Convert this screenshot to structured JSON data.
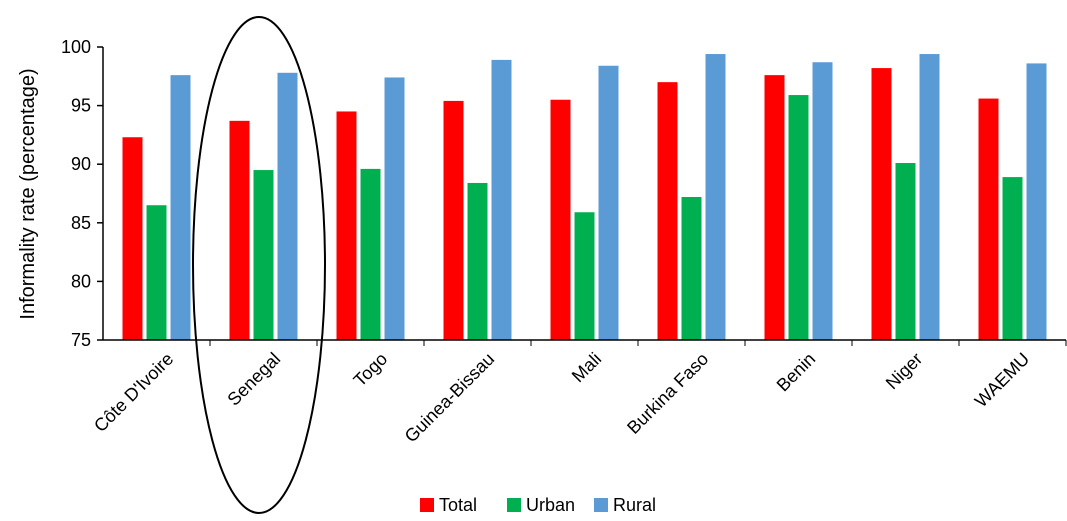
{
  "chart_data": {
    "type": "bar",
    "title": "",
    "xlabel": "",
    "ylabel": "Informality rate (percentage)",
    "ylim": [
      75,
      100
    ],
    "yticks": [
      75,
      80,
      85,
      90,
      95,
      100
    ],
    "grid": false,
    "legend_position": "bottom",
    "categories": [
      "Côte D'Ivoire",
      "Senegal",
      "Togo",
      "Guinea-Bissau",
      "Mali",
      "Burkina Faso",
      "Benin",
      "Niger",
      "WAEMU"
    ],
    "series": [
      {
        "name": "Total",
        "color": "#ff0000",
        "values": [
          92.3,
          93.7,
          94.5,
          95.4,
          95.5,
          97.0,
          97.6,
          98.2,
          95.6
        ]
      },
      {
        "name": "Urban",
        "color": "#00b050",
        "values": [
          86.5,
          89.5,
          89.6,
          88.4,
          85.9,
          87.2,
          95.9,
          90.1,
          88.9
        ]
      },
      {
        "name": "Rural",
        "color": "#5b9bd5",
        "values": [
          97.6,
          97.8,
          97.4,
          98.9,
          98.4,
          99.4,
          98.7,
          99.4,
          98.6
        ]
      }
    ],
    "highlight": {
      "category": "Senegal",
      "shape": "ellipse"
    }
  }
}
